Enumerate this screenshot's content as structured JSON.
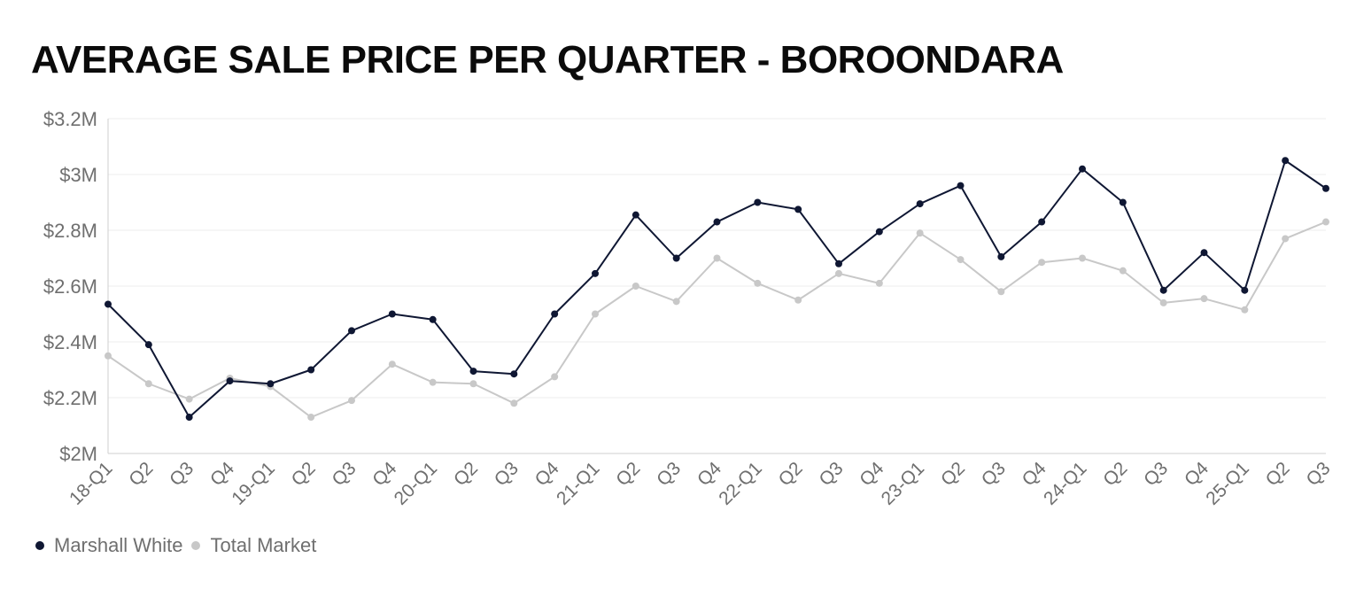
{
  "chart_data": {
    "type": "line",
    "title": "AVERAGE SALE PRICE PER QUARTER - BOROONDARA",
    "categories": [
      "18-Q1",
      "Q2",
      "Q3",
      "Q4",
      "19-Q1",
      "Q2",
      "Q3",
      "Q4",
      "20-Q1",
      "Q2",
      "Q3",
      "Q4",
      "21-Q1",
      "Q2",
      "Q3",
      "Q4",
      "22-Q1",
      "Q2",
      "Q3",
      "Q4",
      "23-Q1",
      "Q2",
      "Q3",
      "Q4",
      "24-Q1",
      "Q2",
      "Q3",
      "Q4",
      "25-Q1",
      "Q2",
      "Q3"
    ],
    "series": [
      {
        "name": "Marshall White",
        "color": "#0f1733",
        "values": [
          2.535,
          2.39,
          2.13,
          2.26,
          2.25,
          2.3,
          2.44,
          2.5,
          2.48,
          2.295,
          2.285,
          2.5,
          2.645,
          2.855,
          2.7,
          2.83,
          2.9,
          2.875,
          2.68,
          2.795,
          2.895,
          2.96,
          2.705,
          2.83,
          3.02,
          2.9,
          2.585,
          2.72,
          2.585,
          3.05,
          2.95
        ]
      },
      {
        "name": "Total Market",
        "color": "#c8c8c8",
        "values": [
          2.35,
          2.25,
          2.195,
          2.27,
          2.24,
          2.13,
          2.19,
          2.32,
          2.255,
          2.25,
          2.18,
          2.275,
          2.5,
          2.6,
          2.545,
          2.7,
          2.61,
          2.55,
          2.645,
          2.61,
          2.79,
          2.695,
          2.58,
          2.685,
          2.7,
          2.655,
          2.54,
          2.555,
          2.515,
          2.77,
          2.83
        ]
      }
    ],
    "ylim": [
      2.0,
      3.2
    ],
    "yticks": [
      2.0,
      2.2,
      2.4,
      2.6,
      2.8,
      3.0,
      3.2
    ],
    "ytick_labels": [
      "$2M",
      "$2.2M",
      "$2.4M",
      "$2.6M",
      "$2.8M",
      "$3M",
      "$3.2M"
    ],
    "xlabel": "",
    "ylabel": "",
    "grid": true,
    "legend_position": "bottom-left"
  },
  "legend": {
    "items": [
      {
        "label": "Marshall White",
        "color": "#0f1733"
      },
      {
        "label": "Total Market",
        "color": "#c8c8c8"
      }
    ]
  }
}
